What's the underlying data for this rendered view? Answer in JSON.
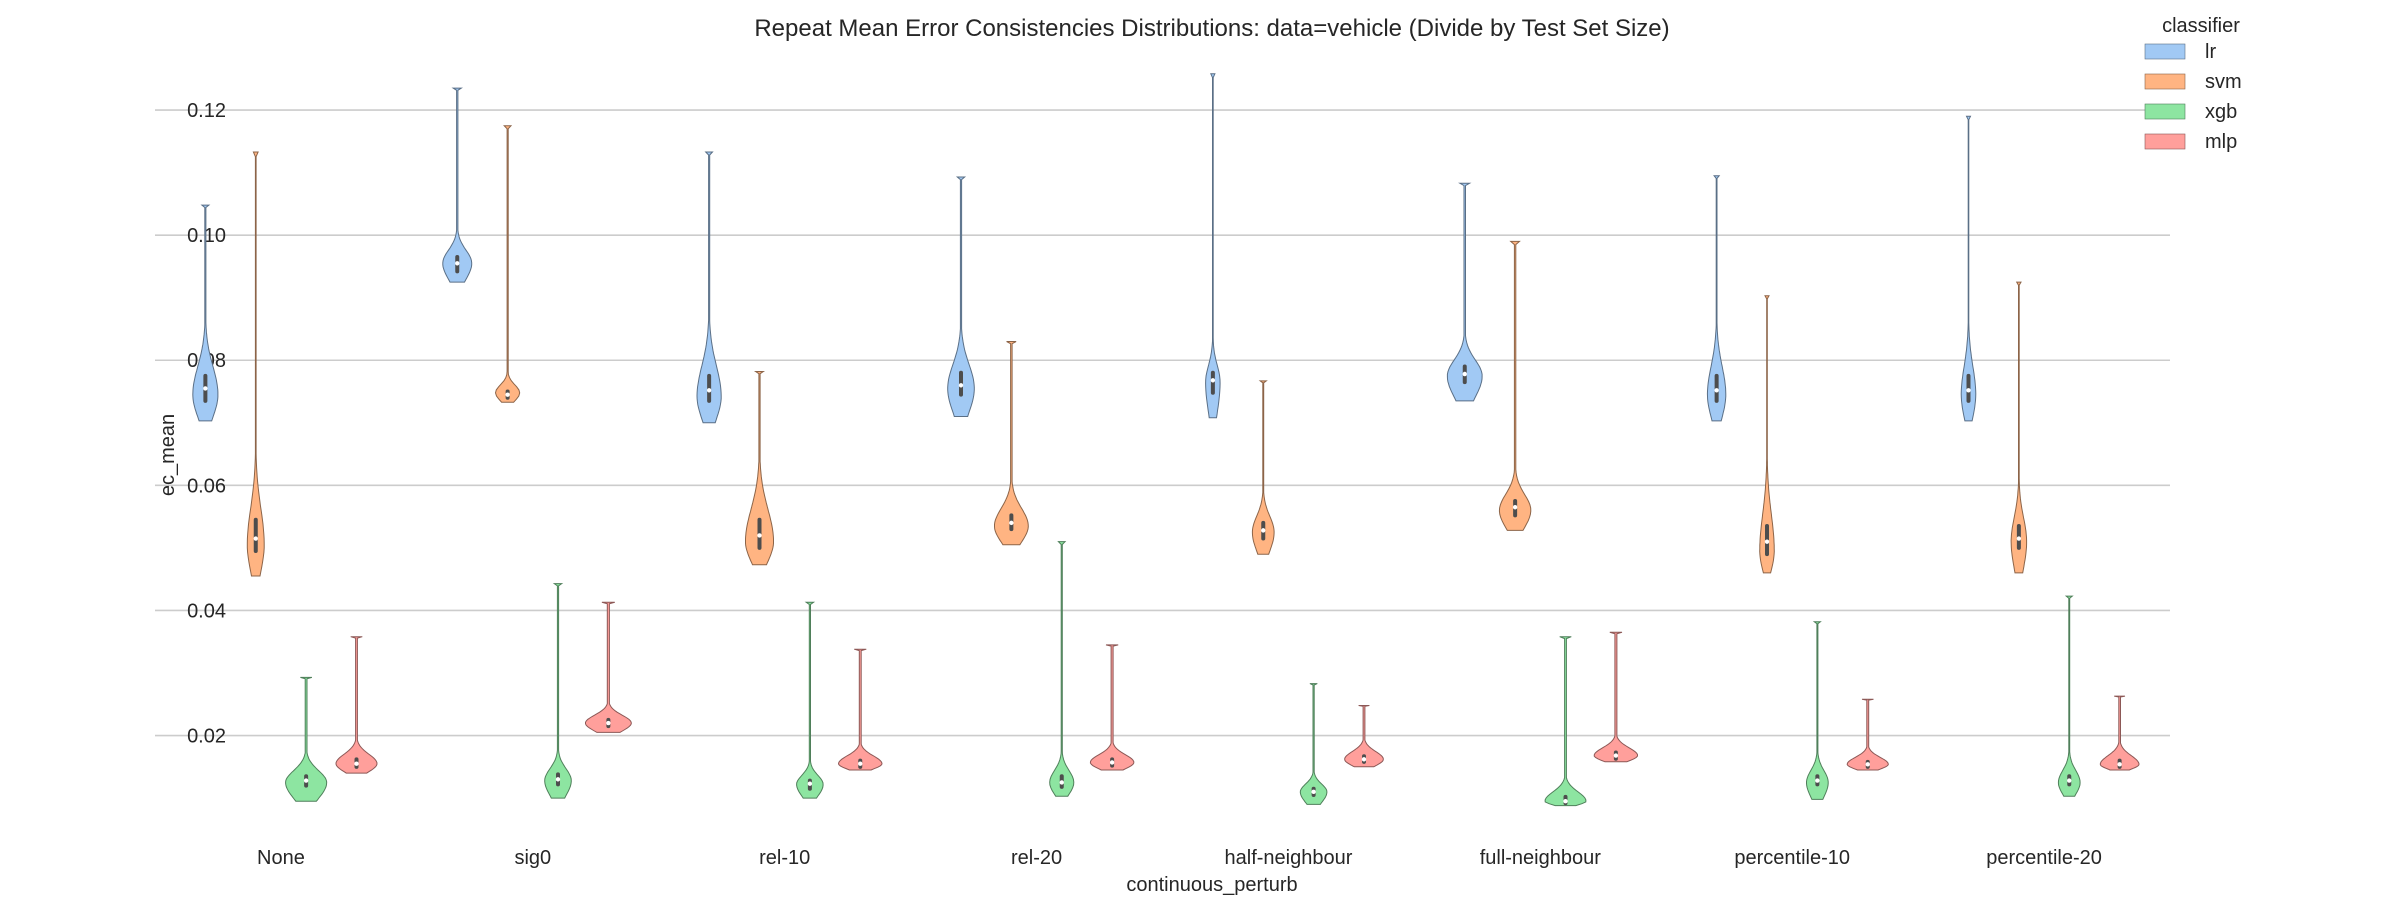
{
  "chart_data": {
    "type": "violin",
    "title": "Repeat Mean Error Consistencies Distributions: data=vehicle (Divide by Test Set Size)",
    "xlabel": "continuous_perturb",
    "ylabel": "ec_mean",
    "ylim": [
      0.0065,
      0.128
    ],
    "yticks": [
      "0.02",
      "0.04",
      "0.06",
      "0.08",
      "0.10",
      "0.12"
    ],
    "categories": [
      "None",
      "sig0",
      "rel-10",
      "rel-20",
      "half-neighbour",
      "full-neighbour",
      "percentile-10",
      "percentile-20"
    ],
    "grid": "horizontal",
    "legend": {
      "title": "classifier",
      "placement": "top-right"
    },
    "series": [
      {
        "name": "lr",
        "color": "#a1c9f4",
        "edge": "#5a6f86",
        "stats": [
          {
            "min": 0.0703,
            "q1": 0.0735,
            "median": 0.0755,
            "q3": 0.0775,
            "max": 0.1048,
            "mode": 0.0745,
            "width": 0.52
          },
          {
            "min": 0.0925,
            "q1": 0.0942,
            "median": 0.0955,
            "q3": 0.0965,
            "max": 0.1235,
            "mode": 0.0955,
            "width": 0.6
          },
          {
            "min": 0.07,
            "q1": 0.0735,
            "median": 0.0752,
            "q3": 0.0775,
            "max": 0.1133,
            "mode": 0.0742,
            "width": 0.5
          },
          {
            "min": 0.071,
            "q1": 0.0745,
            "median": 0.076,
            "q3": 0.078,
            "max": 0.1093,
            "mode": 0.0755,
            "width": 0.55
          },
          {
            "min": 0.0708,
            "q1": 0.0748,
            "median": 0.0768,
            "q3": 0.078,
            "max": 0.1258,
            "mode": 0.0765,
            "width": 0.3
          },
          {
            "min": 0.0735,
            "q1": 0.0765,
            "median": 0.0778,
            "q3": 0.079,
            "max": 0.1083,
            "mode": 0.0775,
            "width": 0.72
          },
          {
            "min": 0.0703,
            "q1": 0.0735,
            "median": 0.0752,
            "q3": 0.0775,
            "max": 0.1095,
            "mode": 0.0745,
            "width": 0.38
          },
          {
            "min": 0.0703,
            "q1": 0.0735,
            "median": 0.0752,
            "q3": 0.0775,
            "max": 0.119,
            "mode": 0.0745,
            "width": 0.3
          }
        ]
      },
      {
        "name": "svm",
        "color": "#ffb482",
        "edge": "#8c6448",
        "stats": [
          {
            "min": 0.0455,
            "q1": 0.0495,
            "median": 0.0515,
            "q3": 0.0545,
            "max": 0.1133,
            "mode": 0.0505,
            "width": 0.35
          },
          {
            "min": 0.0733,
            "q1": 0.074,
            "median": 0.0745,
            "q3": 0.075,
            "max": 0.1175,
            "mode": 0.0748,
            "width": 0.5
          },
          {
            "min": 0.0473,
            "q1": 0.05,
            "median": 0.052,
            "q3": 0.0545,
            "max": 0.0782,
            "mode": 0.051,
            "width": 0.58
          },
          {
            "min": 0.0505,
            "q1": 0.053,
            "median": 0.054,
            "q3": 0.0552,
            "max": 0.083,
            "mode": 0.0535,
            "width": 0.7
          },
          {
            "min": 0.049,
            "q1": 0.0515,
            "median": 0.0528,
            "q3": 0.054,
            "max": 0.0767,
            "mode": 0.0525,
            "width": 0.45
          },
          {
            "min": 0.0528,
            "q1": 0.0552,
            "median": 0.0565,
            "q3": 0.0575,
            "max": 0.099,
            "mode": 0.056,
            "width": 0.65
          },
          {
            "min": 0.046,
            "q1": 0.049,
            "median": 0.051,
            "q3": 0.0535,
            "max": 0.0903,
            "mode": 0.0495,
            "width": 0.3
          },
          {
            "min": 0.046,
            "q1": 0.05,
            "median": 0.0515,
            "q3": 0.0535,
            "max": 0.0925,
            "mode": 0.051,
            "width": 0.32
          }
        ]
      },
      {
        "name": "xgb",
        "color": "#8de5a1",
        "edge": "#4f7f5a",
        "stats": [
          {
            "min": 0.0095,
            "q1": 0.012,
            "median": 0.0128,
            "q3": 0.0135,
            "max": 0.0293,
            "mode": 0.0125,
            "width": 0.85
          },
          {
            "min": 0.01,
            "q1": 0.0122,
            "median": 0.013,
            "q3": 0.0138,
            "max": 0.0443,
            "mode": 0.0128,
            "width": 0.55
          },
          {
            "min": 0.01,
            "q1": 0.0115,
            "median": 0.0123,
            "q3": 0.0128,
            "max": 0.0413,
            "mode": 0.0122,
            "width": 0.55
          },
          {
            "min": 0.0103,
            "q1": 0.0118,
            "median": 0.0125,
            "q3": 0.0135,
            "max": 0.051,
            "mode": 0.0125,
            "width": 0.5
          },
          {
            "min": 0.009,
            "q1": 0.0105,
            "median": 0.011,
            "q3": 0.0115,
            "max": 0.0283,
            "mode": 0.011,
            "width": 0.55
          },
          {
            "min": 0.0088,
            "q1": 0.0092,
            "median": 0.0095,
            "q3": 0.0102,
            "max": 0.0358,
            "mode": 0.0095,
            "width": 0.85
          },
          {
            "min": 0.0098,
            "q1": 0.0122,
            "median": 0.0128,
            "q3": 0.0135,
            "max": 0.0382,
            "mode": 0.0125,
            "width": 0.45
          },
          {
            "min": 0.0103,
            "q1": 0.0122,
            "median": 0.0128,
            "q3": 0.0135,
            "max": 0.0423,
            "mode": 0.0125,
            "width": 0.45
          }
        ]
      },
      {
        "name": "mlp",
        "color": "#ff9f9b",
        "edge": "#8c5856",
        "stats": [
          {
            "min": 0.014,
            "q1": 0.015,
            "median": 0.0155,
            "q3": 0.0162,
            "max": 0.0358,
            "mode": 0.0155,
            "width": 0.85
          },
          {
            "min": 0.0205,
            "q1": 0.0215,
            "median": 0.022,
            "q3": 0.0225,
            "max": 0.0413,
            "mode": 0.022,
            "width": 0.95
          },
          {
            "min": 0.0145,
            "q1": 0.015,
            "median": 0.0155,
            "q3": 0.016,
            "max": 0.0338,
            "mode": 0.0155,
            "width": 0.9
          },
          {
            "min": 0.0145,
            "q1": 0.0152,
            "median": 0.0157,
            "q3": 0.0162,
            "max": 0.0345,
            "mode": 0.0157,
            "width": 0.9
          },
          {
            "min": 0.015,
            "q1": 0.0158,
            "median": 0.0162,
            "q3": 0.0167,
            "max": 0.0248,
            "mode": 0.0162,
            "width": 0.8
          },
          {
            "min": 0.0158,
            "q1": 0.0163,
            "median": 0.0168,
            "q3": 0.0173,
            "max": 0.0365,
            "mode": 0.0168,
            "width": 0.9
          },
          {
            "min": 0.0145,
            "q1": 0.015,
            "median": 0.0154,
            "q3": 0.0158,
            "max": 0.0258,
            "mode": 0.0154,
            "width": 0.85
          },
          {
            "min": 0.0145,
            "q1": 0.015,
            "median": 0.0154,
            "q3": 0.016,
            "max": 0.0263,
            "mode": 0.0154,
            "width": 0.8
          }
        ]
      }
    ]
  }
}
